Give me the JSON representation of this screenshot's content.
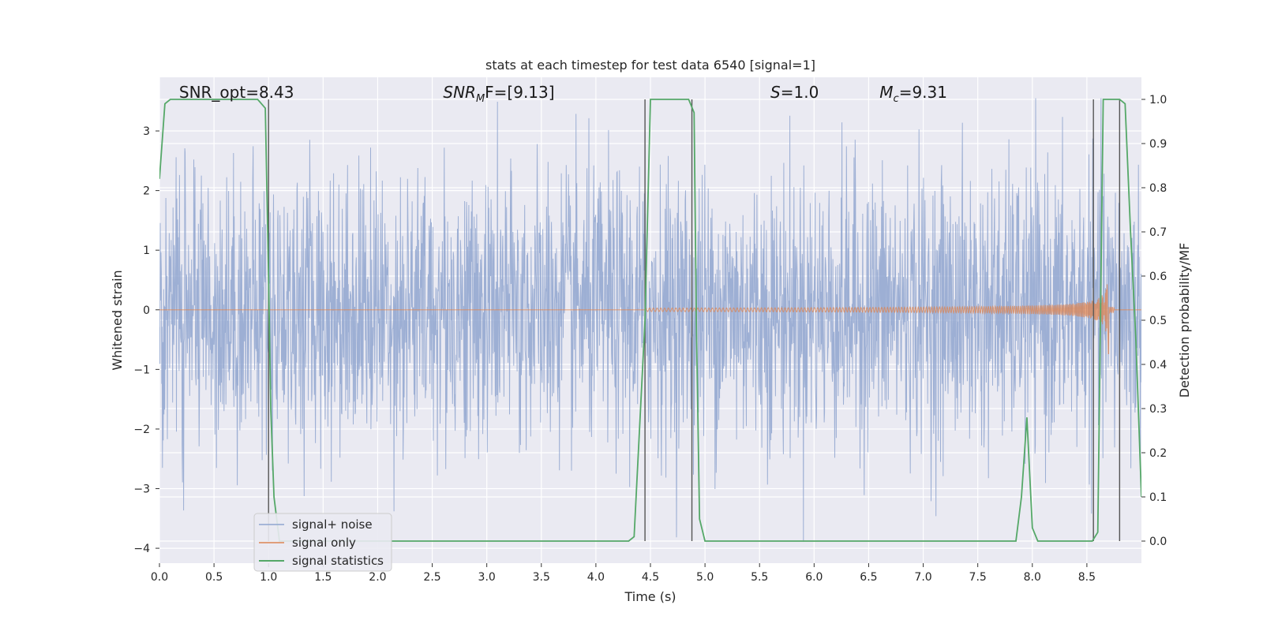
{
  "chart_data": {
    "type": "line",
    "title": "stats at each timestep for test data 6540 [signal=1]",
    "xlabel": "Time (s)",
    "ylabel_left": "Whitened strain",
    "ylabel_right": "Detection probability/MF",
    "xlim": [
      0,
      9.0
    ],
    "ylim_left": [
      -4.25,
      3.9
    ],
    "ylim_right": [
      -0.05,
      1.05
    ],
    "x_ticks": [
      0.0,
      0.5,
      1.0,
      1.5,
      2.0,
      2.5,
      3.0,
      3.5,
      4.0,
      4.5,
      5.0,
      5.5,
      6.0,
      6.5,
      7.0,
      7.5,
      8.0,
      8.5
    ],
    "x_tick_labels": [
      "0.0",
      "0.5",
      "1.0",
      "1.5",
      "2.0",
      "2.5",
      "3.0",
      "3.5",
      "4.0",
      "4.5",
      "5.0",
      "5.5",
      "6.0",
      "6.5",
      "7.0",
      "7.5",
      "8.0",
      "8.5"
    ],
    "y_left_ticks": [
      3,
      2,
      1,
      0,
      -1,
      -2,
      -3,
      -4
    ],
    "y_left_tick_labels": [
      "3",
      "2",
      "1",
      "0",
      "−1",
      "−2",
      "−3",
      "−4"
    ],
    "y_right_ticks": [
      1.0,
      0.9,
      0.8,
      0.7,
      0.6,
      0.5,
      0.4,
      0.3,
      0.2,
      0.1,
      0.0
    ],
    "y_right_tick_labels": [
      "1.0",
      "0.9",
      "0.8",
      "0.7",
      "0.6",
      "0.5",
      "0.4",
      "0.3",
      "0.2",
      "0.1",
      "0.0"
    ],
    "grid": true,
    "legend_position": "lower-left",
    "annotations": [
      {
        "id": "snr-opt",
        "text": "SNR_opt=8.43",
        "x": 0.18
      },
      {
        "id": "snr-mf",
        "base": "SNR",
        "sub": "M",
        "tail": "F=[9.13]",
        "x": 2.6
      },
      {
        "id": "s-value",
        "base": "S",
        "tail": "=1.0",
        "x": 5.6
      },
      {
        "id": "mc-value",
        "base": "M",
        "sub": "c",
        "tail": "=9.31",
        "x": 6.6
      }
    ],
    "series": [
      {
        "name": "signal+ noise",
        "color": "#8fa5cf",
        "description": "whitened noisy strain, roughly within -2.5 to 2.5 with spikes to about 3.5 and -4",
        "amplitude_range": [
          -4.0,
          3.6
        ]
      },
      {
        "name": "signal only",
        "color": "#dd8452",
        "description": "chirp starting near 4.45 s, growing to about 1.0 at 8.7 s",
        "chirp_start": 4.45,
        "chirp_peak_time": 8.7,
        "chirp_peak_amplitude": 1.0
      },
      {
        "name": "signal statistics",
        "color": "#55a868",
        "axis": "right",
        "x": [
          0.0,
          0.05,
          0.1,
          0.15,
          0.8,
          0.9,
          0.97,
          1.0,
          1.02,
          1.05,
          1.1,
          1.2,
          4.2,
          4.3,
          4.35,
          4.45,
          4.5,
          4.55,
          4.85,
          4.9,
          4.92,
          4.95,
          5.0,
          6.5,
          6.6,
          6.7,
          7.8,
          7.85,
          7.9,
          7.95,
          8.0,
          8.05,
          8.3,
          8.55,
          8.6,
          8.65,
          8.7,
          8.8,
          8.85,
          8.9,
          8.95,
          9.0
        ],
        "y": [
          0.82,
          0.99,
          1.0,
          1.0,
          1.0,
          1.0,
          0.98,
          0.6,
          0.3,
          0.1,
          0.0,
          0.0,
          0.0,
          0.0,
          0.01,
          0.5,
          1.0,
          1.0,
          1.0,
          0.97,
          0.5,
          0.05,
          0.0,
          0.0,
          0.0,
          0.0,
          0.0,
          0.0,
          0.1,
          0.28,
          0.03,
          0.0,
          0.0,
          0.0,
          0.02,
          1.0,
          1.0,
          1.0,
          0.99,
          0.7,
          0.45,
          0.1
        ]
      }
    ],
    "vertical_markers": [
      1.0,
      4.45,
      4.88,
      8.56,
      8.8
    ],
    "legend": [
      "signal+ noise",
      "signal only",
      "signal statistics"
    ]
  }
}
